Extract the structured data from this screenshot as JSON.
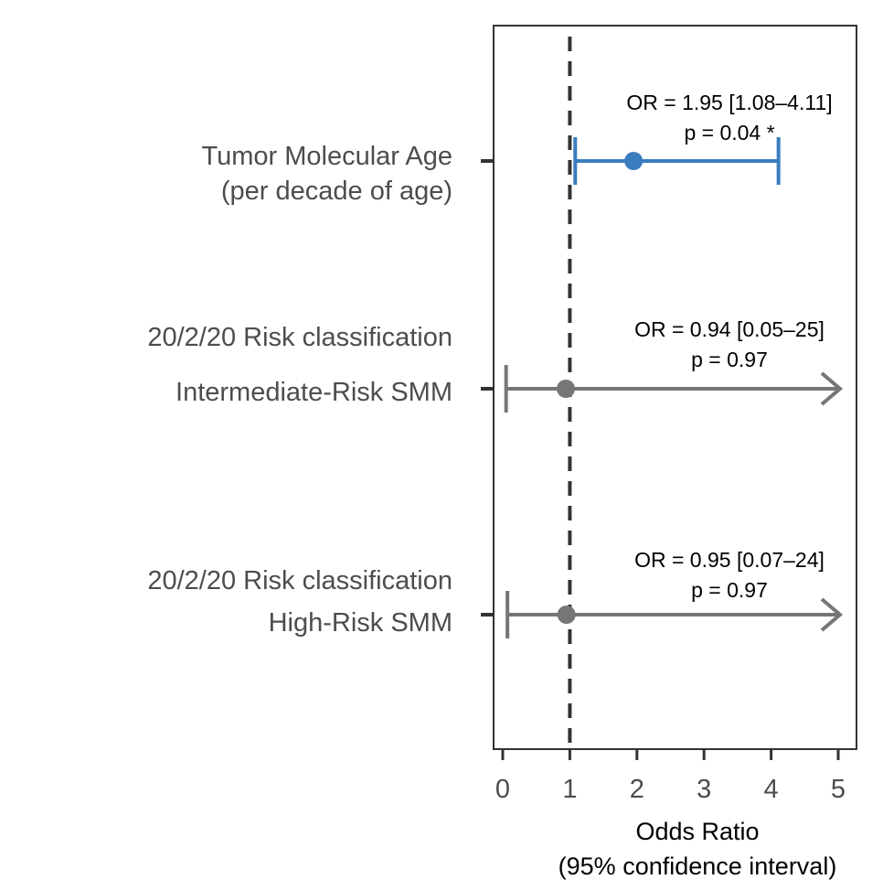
{
  "chart_data": {
    "type": "forest",
    "xlabel": [
      "Odds Ratio",
      "(95% confidence interval)"
    ],
    "xlim": [
      -0.1,
      5.3
    ],
    "xticks": [
      0,
      1,
      2,
      3,
      4,
      5
    ],
    "reference_line": 1,
    "rows": [
      {
        "label": [
          "Tumor Molecular Age",
          "(per decade of age)"
        ],
        "or": 1.95,
        "lower": 1.08,
        "upper": 4.11,
        "upper_clipped": false,
        "color": "#3a7dbf",
        "annotation": [
          "OR = 1.95 [1.08–4.11]",
          "p = 0.04 *"
        ]
      },
      {
        "label": [
          "20/2/20 Risk classification",
          "Intermediate-Risk SMM"
        ],
        "or": 0.94,
        "lower": 0.05,
        "upper": 25,
        "upper_clipped": true,
        "color": "#767676",
        "annotation": [
          "OR = 0.94 [0.05–25]",
          "p = 0.97"
        ]
      },
      {
        "label": [
          "20/2/20 Risk classification",
          "High-Risk SMM"
        ],
        "or": 0.95,
        "lower": 0.07,
        "upper": 24,
        "upper_clipped": true,
        "color": "#767676",
        "annotation": [
          "OR = 0.95 [0.07–24]",
          "p = 0.97"
        ]
      }
    ]
  }
}
